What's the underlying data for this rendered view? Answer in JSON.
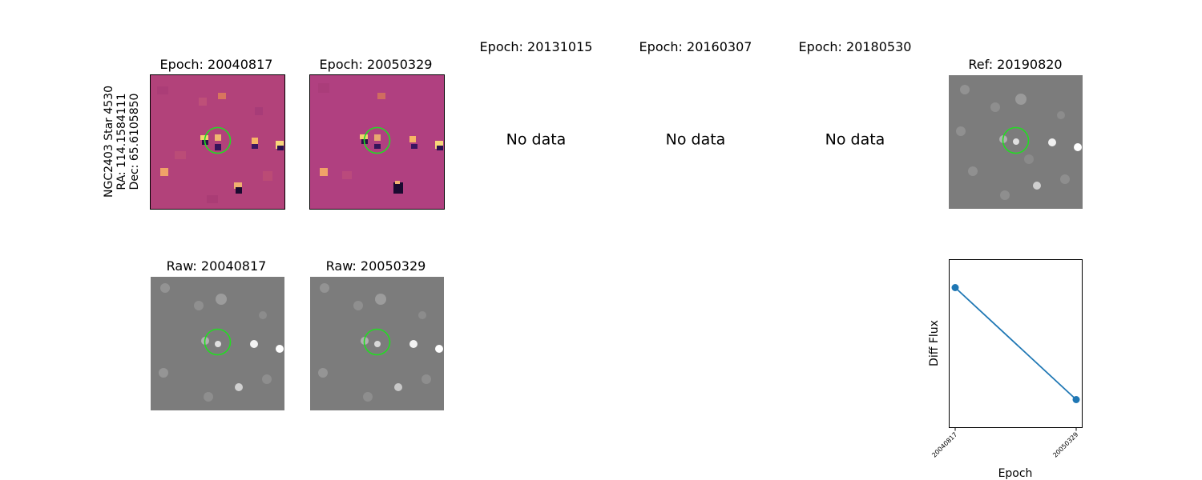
{
  "side_label": {
    "line1": "NGC2403 Star 4530",
    "line2": "RA: 114.1584111",
    "line3": "Dec: 65.6105850"
  },
  "panels": {
    "diff1": "Epoch: 20040817",
    "diff2": "Epoch: 20050329",
    "e3": "Epoch: 20131015",
    "e4": "Epoch: 20160307",
    "e5": "Epoch: 20180530",
    "ref": "Ref: 20190820",
    "raw1": "Raw: 20040817",
    "raw2": "Raw: 20050329"
  },
  "no_data_text": "No data",
  "colors": {
    "marker_circle": "#22dd22",
    "line": "#1f77b4",
    "diff_background": "#b2427a",
    "gray_background": "#7c7c7c"
  },
  "chart_data": {
    "type": "line",
    "x": [
      "20040817",
      "20050329"
    ],
    "series": [
      {
        "values": [
          1.0,
          0.0
        ]
      }
    ],
    "xlabel": "Epoch",
    "ylabel": "Diff Flux",
    "grid": false
  }
}
